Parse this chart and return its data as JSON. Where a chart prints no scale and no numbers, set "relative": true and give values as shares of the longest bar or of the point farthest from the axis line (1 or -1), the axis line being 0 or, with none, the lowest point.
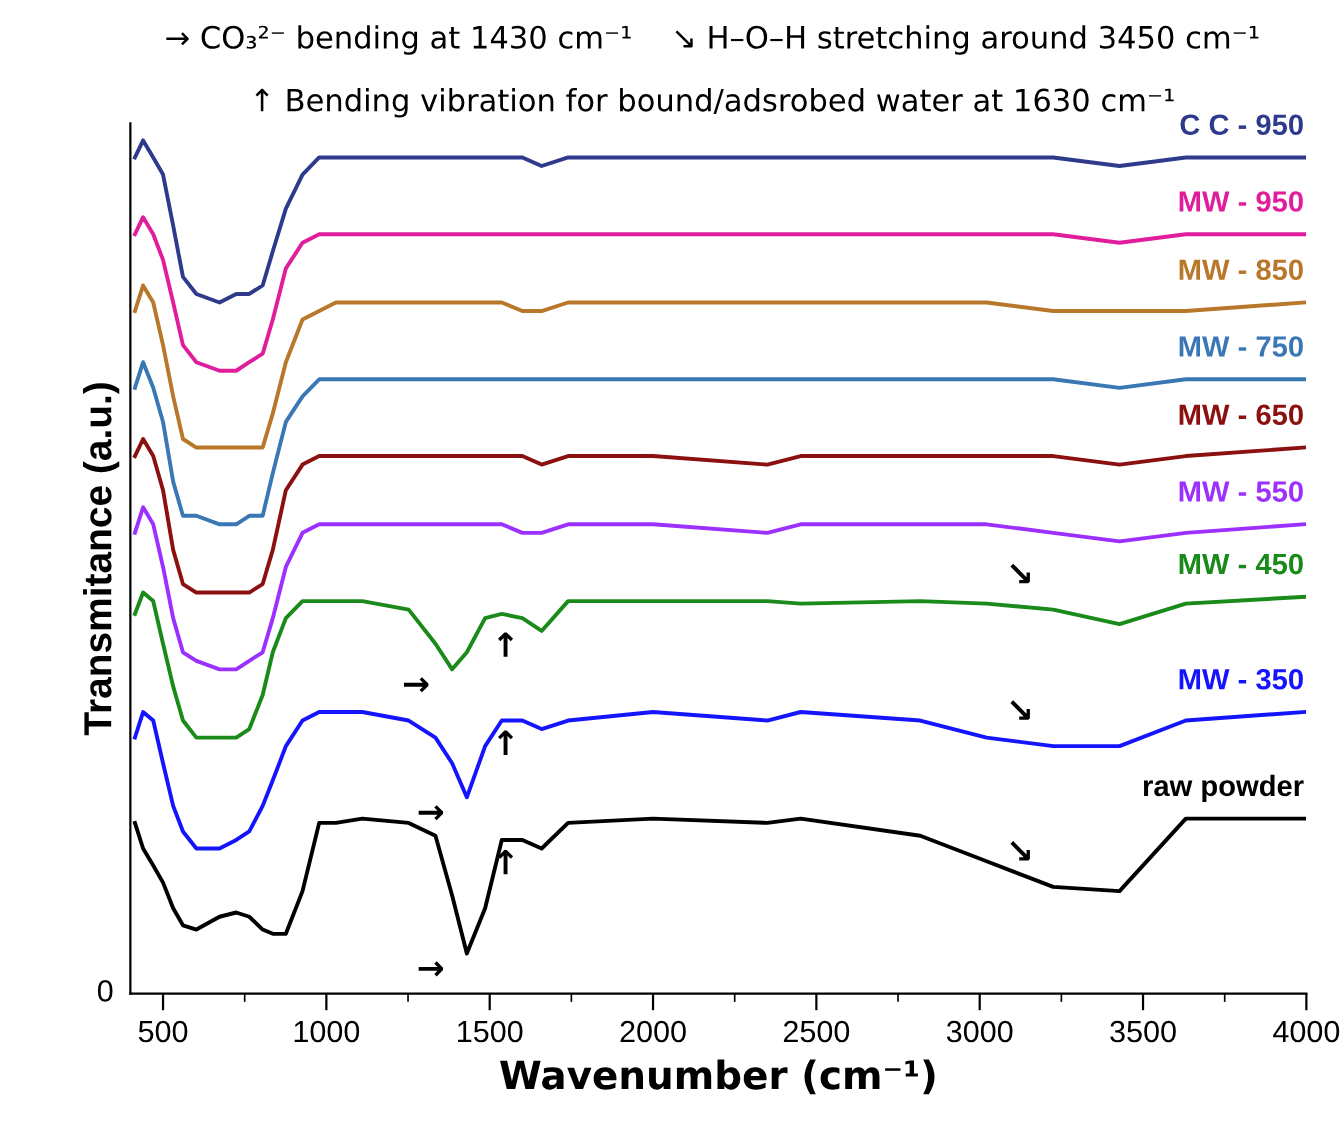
{
  "chart_data": {
    "type": "line",
    "relative": true,
    "xlabel": "Wavenumber (cm⁻¹)",
    "ylabel": "Transmitance (a.u.)",
    "xlim": [
      400,
      4000
    ],
    "xticks": [
      500,
      {
        "value": 750,
        "label": null
      },
      1000,
      {
        "value": 1250,
        "label": null
      },
      1500,
      {
        "value": 1750,
        "label": null
      },
      2000,
      {
        "value": 2250,
        "label": null
      },
      2500,
      {
        "value": 2750,
        "label": null
      },
      3000,
      {
        "value": 3250,
        "label": null
      },
      3500,
      {
        "value": 3750,
        "label": null
      },
      4000
    ],
    "grid": false,
    "legend": false,
    "marker": "none",
    "line_style": "solid",
    "x": [
      414,
      439,
      470,
      500,
      531,
      561,
      602,
      673,
      724,
      764,
      805,
      836,
      876,
      927,
      978,
      1029,
      1110,
      1252,
      1334,
      1385,
      1430,
      1486,
      1537,
      1600,
      1659,
      1740,
      2000,
      2350,
      2452,
      2818,
      3021,
      3225,
      3428,
      3631,
      3993
    ],
    "series": [
      {
        "name": "C C - 950",
        "color": "#2e3a8c",
        "values": [
          0.98,
          1.0,
          0.98,
          0.96,
          0.9,
          0.84,
          0.82,
          0.81,
          0.82,
          0.82,
          0.83,
          0.87,
          0.92,
          0.96,
          0.98,
          0.98,
          0.98,
          0.98,
          0.98,
          0.98,
          0.98,
          0.98,
          0.98,
          0.98,
          0.97,
          0.98,
          0.98,
          0.98,
          0.98,
          0.98,
          0.98,
          0.98,
          0.97,
          0.98,
          0.98
        ]
      },
      {
        "name": "MW - 950",
        "color": "#e01e9b",
        "values": [
          0.89,
          0.91,
          0.89,
          0.86,
          0.81,
          0.76,
          0.74,
          0.73,
          0.73,
          0.74,
          0.75,
          0.79,
          0.85,
          0.88,
          0.89,
          0.89,
          0.89,
          0.89,
          0.89,
          0.89,
          0.89,
          0.89,
          0.89,
          0.89,
          0.89,
          0.89,
          0.89,
          0.89,
          0.89,
          0.89,
          0.89,
          0.89,
          0.88,
          0.89,
          0.89
        ]
      },
      {
        "name": "MW - 850",
        "color": "#b8772a",
        "values": [
          0.8,
          0.83,
          0.81,
          0.76,
          0.7,
          0.65,
          0.64,
          0.64,
          0.64,
          0.64,
          0.64,
          0.68,
          0.74,
          0.79,
          0.8,
          0.81,
          0.81,
          0.81,
          0.81,
          0.81,
          0.81,
          0.81,
          0.81,
          0.8,
          0.8,
          0.81,
          0.81,
          0.81,
          0.81,
          0.81,
          0.81,
          0.8,
          0.8,
          0.8,
          0.81
        ]
      },
      {
        "name": "MW - 750",
        "color": "#3a78b5",
        "values": [
          0.71,
          0.74,
          0.71,
          0.67,
          0.6,
          0.56,
          0.56,
          0.55,
          0.55,
          0.56,
          0.56,
          0.61,
          0.67,
          0.7,
          0.72,
          0.72,
          0.72,
          0.72,
          0.72,
          0.72,
          0.72,
          0.72,
          0.72,
          0.72,
          0.72,
          0.72,
          0.72,
          0.72,
          0.72,
          0.72,
          0.72,
          0.72,
          0.71,
          0.72,
          0.72
        ]
      },
      {
        "name": "MW - 650",
        "color": "#8b1010",
        "values": [
          0.63,
          0.65,
          0.63,
          0.59,
          0.52,
          0.48,
          0.47,
          0.47,
          0.47,
          0.47,
          0.48,
          0.52,
          0.59,
          0.62,
          0.63,
          0.63,
          0.63,
          0.63,
          0.63,
          0.63,
          0.63,
          0.63,
          0.63,
          0.63,
          0.62,
          0.63,
          0.63,
          0.62,
          0.63,
          0.63,
          0.63,
          0.63,
          0.62,
          0.63,
          0.64
        ]
      },
      {
        "name": "MW - 550",
        "color": "#9b30ff",
        "values": [
          0.54,
          0.57,
          0.55,
          0.5,
          0.44,
          0.4,
          0.39,
          0.38,
          0.38,
          0.39,
          0.4,
          0.44,
          0.5,
          0.54,
          0.55,
          0.55,
          0.55,
          0.55,
          0.55,
          0.55,
          0.55,
          0.55,
          0.55,
          0.54,
          0.54,
          0.55,
          0.55,
          0.54,
          0.55,
          0.55,
          0.55,
          0.54,
          0.53,
          0.54,
          0.55
        ]
      },
      {
        "name": "MW - 450",
        "color": "#1a8a1a",
        "values": [
          0.445,
          0.47,
          0.46,
          0.41,
          0.36,
          0.32,
          0.3,
          0.3,
          0.3,
          0.31,
          0.35,
          0.4,
          0.44,
          0.46,
          0.46,
          0.46,
          0.46,
          0.45,
          0.41,
          0.38,
          0.4,
          0.44,
          0.445,
          0.44,
          0.425,
          0.46,
          0.46,
          0.46,
          0.457,
          0.46,
          0.457,
          0.45,
          0.433,
          0.457,
          0.465
        ]
      },
      {
        "name": "MW - 350",
        "color": "#1414ff",
        "values": [
          0.3,
          0.33,
          0.32,
          0.27,
          0.22,
          0.19,
          0.17,
          0.17,
          0.18,
          0.19,
          0.22,
          0.25,
          0.29,
          0.32,
          0.33,
          0.33,
          0.33,
          0.32,
          0.3,
          0.27,
          0.23,
          0.29,
          0.32,
          0.32,
          0.31,
          0.32,
          0.33,
          0.32,
          0.33,
          0.32,
          0.3,
          0.29,
          0.29,
          0.32,
          0.33
        ]
      },
      {
        "name": "raw powder",
        "color": "#000000",
        "values": [
          0.2,
          0.17,
          0.15,
          0.13,
          0.1,
          0.08,
          0.075,
          0.09,
          0.095,
          0.09,
          0.075,
          0.07,
          0.07,
          0.12,
          0.2,
          0.2,
          0.205,
          0.2,
          0.185,
          0.115,
          0.047,
          0.1,
          0.18,
          0.18,
          0.17,
          0.2,
          0.205,
          0.2,
          0.205,
          0.185,
          0.155,
          0.125,
          0.12,
          0.205,
          0.205
        ]
      }
    ],
    "annotations": [
      "→ CO₃²⁻ bending at 1430 cm⁻¹    ↘ H–O–H stretching around 3450 cm⁻¹",
      "↑ Bending vibration for bound/adsrobed water at 1630 cm⁻¹",
      "0",
      {
        "text": "→",
        "x": 1430,
        "y": 0.047
      },
      {
        "text": "→",
        "x": 1430,
        "y": 0.23
      },
      {
        "text": "→",
        "x": 1385,
        "y": 0.38
      },
      {
        "text": "↑",
        "x": 1659,
        "y": 0.17
      },
      {
        "text": "↑",
        "x": 1659,
        "y": 0.31
      },
      {
        "text": "↑",
        "x": 1659,
        "y": 0.425
      },
      {
        "text": "↘",
        "x": 3225,
        "y": 0.125
      },
      {
        "text": "↘",
        "x": 3225,
        "y": 0.29
      },
      {
        "text": "↘",
        "x": 3225,
        "y": 0.45
      }
    ]
  }
}
